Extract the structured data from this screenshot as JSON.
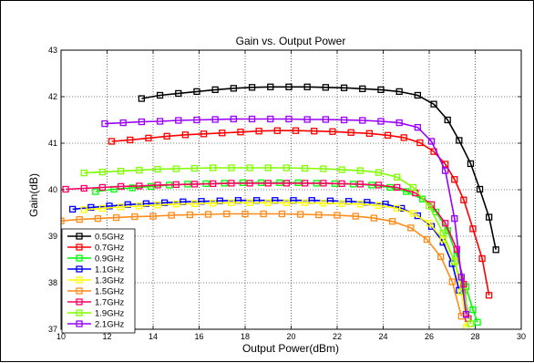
{
  "chart_data": {
    "type": "line",
    "title": "Gain vs. Output Power",
    "xlabel": "Output Power(dBm)",
    "ylabel": "Gain(dB)",
    "xlim": [
      10,
      30
    ],
    "ylim": [
      37,
      43
    ],
    "xticks": [
      "10",
      "12",
      "14",
      "16",
      "18",
      "20",
      "22",
      "24",
      "26",
      "28",
      "30"
    ],
    "yticks": [
      "37",
      "38",
      "39",
      "40",
      "41",
      "42",
      "43"
    ],
    "grid": true,
    "legend_position": "bottom-left",
    "marker": "square",
    "series": [
      {
        "name": "0.5GHz",
        "color": "#000000",
        "x": [
          13.5,
          14.3,
          15.1,
          15.9,
          16.7,
          17.5,
          18.3,
          19.1,
          19.9,
          20.7,
          21.5,
          22.3,
          23.1,
          23.9,
          24.7,
          25.5,
          26.2,
          26.8,
          27.3,
          27.8,
          28.2,
          28.6,
          28.9
        ],
        "y": [
          41.96,
          42.03,
          42.07,
          42.11,
          42.15,
          42.18,
          42.2,
          42.21,
          42.21,
          42.21,
          42.2,
          42.19,
          42.17,
          42.15,
          42.11,
          42.03,
          41.84,
          41.5,
          41.06,
          40.56,
          40.01,
          39.41,
          38.71
        ]
      },
      {
        "name": "0.7GHz",
        "color": "#ff0000",
        "x": [
          12.2,
          13.0,
          13.8,
          14.6,
          15.4,
          16.2,
          17.0,
          17.8,
          18.6,
          19.4,
          20.2,
          21.0,
          21.8,
          22.6,
          23.4,
          24.2,
          24.9,
          25.6,
          26.2,
          26.7,
          27.1,
          27.5,
          27.9,
          28.3,
          28.6
        ],
        "y": [
          41.04,
          41.07,
          41.11,
          41.15,
          41.18,
          41.2,
          41.22,
          41.24,
          41.26,
          41.27,
          41.27,
          41.26,
          41.25,
          41.23,
          41.21,
          41.17,
          41.12,
          41.01,
          40.82,
          40.55,
          40.22,
          39.78,
          39.16,
          38.52,
          37.73
        ]
      },
      {
        "name": "0.9GHz",
        "color": "#00ff00",
        "x": [
          11.5,
          12.3,
          13.1,
          13.9,
          14.7,
          15.5,
          16.3,
          17.1,
          17.9,
          18.7,
          19.5,
          20.3,
          21.1,
          21.9,
          22.7,
          23.5,
          24.3,
          25.0,
          25.7,
          26.3,
          26.8,
          27.2,
          27.6,
          27.9,
          28.1
        ],
        "y": [
          39.96,
          40.01,
          40.04,
          40.07,
          40.1,
          40.12,
          40.13,
          40.14,
          40.15,
          40.15,
          40.15,
          40.15,
          40.14,
          40.13,
          40.12,
          40.1,
          40.05,
          39.96,
          39.8,
          39.52,
          39.12,
          38.58,
          37.91,
          37.42,
          37.15
        ]
      },
      {
        "name": "1.1GHz",
        "color": "#0000ff",
        "x": [
          10.5,
          11.3,
          12.1,
          12.9,
          13.7,
          14.5,
          15.3,
          16.1,
          16.9,
          17.7,
          18.5,
          19.3,
          20.1,
          20.9,
          21.7,
          22.5,
          23.3,
          24.1,
          24.8,
          25.5,
          26.1,
          26.6,
          27.0,
          27.3
        ],
        "y": [
          39.58,
          39.62,
          39.65,
          39.68,
          39.7,
          39.72,
          39.74,
          39.75,
          39.76,
          39.77,
          39.77,
          39.77,
          39.77,
          39.77,
          39.76,
          39.75,
          39.73,
          39.69,
          39.6,
          39.44,
          39.21,
          38.87,
          38.41,
          37.84
        ]
      },
      {
        "name": "1.3GHz",
        "color": "#ffff00",
        "x": [
          11.0,
          11.8,
          12.6,
          13.4,
          14.2,
          15.0,
          15.8,
          16.6,
          17.4,
          18.2,
          19.0,
          19.8,
          20.6,
          21.4,
          22.2,
          23.0,
          23.8,
          24.6,
          25.3,
          26.0,
          26.6,
          27.1,
          27.4,
          27.6
        ],
        "y": [
          39.57,
          39.6,
          39.63,
          39.65,
          39.67,
          39.69,
          39.7,
          39.71,
          39.72,
          39.72,
          39.72,
          39.72,
          39.72,
          39.71,
          39.7,
          39.69,
          39.66,
          39.6,
          39.49,
          39.28,
          38.94,
          38.47,
          37.8,
          37.04
        ]
      },
      {
        "name": "1.5GHz",
        "color": "#ff8c1a",
        "x": [
          10.0,
          10.8,
          11.6,
          12.4,
          13.2,
          14.0,
          14.8,
          15.6,
          16.4,
          17.2,
          18.0,
          18.8,
          19.6,
          20.4,
          21.2,
          22.0,
          22.8,
          23.6,
          24.4,
          25.2,
          25.9,
          26.5,
          27.0,
          27.4
        ],
        "y": [
          39.33,
          39.36,
          39.38,
          39.4,
          39.42,
          39.43,
          39.45,
          39.46,
          39.47,
          39.48,
          39.48,
          39.48,
          39.48,
          39.47,
          39.46,
          39.45,
          39.43,
          39.39,
          39.32,
          39.18,
          38.93,
          38.56,
          38.02,
          37.28
        ]
      },
      {
        "name": "1.7GHz",
        "color": "#ff0066",
        "x": [
          10.2,
          11.0,
          11.8,
          12.6,
          13.4,
          14.2,
          15.0,
          15.8,
          16.6,
          17.4,
          18.2,
          19.0,
          19.8,
          20.6,
          21.4,
          22.2,
          23.0,
          23.8,
          24.6,
          25.4,
          26.1,
          26.7,
          27.2,
          27.5,
          27.7
        ],
        "y": [
          40.01,
          40.03,
          40.05,
          40.07,
          40.08,
          40.1,
          40.11,
          40.12,
          40.13,
          40.14,
          40.14,
          40.14,
          40.14,
          40.14,
          40.14,
          40.13,
          40.12,
          40.1,
          40.05,
          39.93,
          39.68,
          39.28,
          38.72,
          37.97,
          37.23
        ]
      },
      {
        "name": "1.9GHz",
        "color": "#80ff00",
        "x": [
          11.0,
          11.8,
          12.6,
          13.4,
          14.2,
          15.0,
          15.8,
          16.6,
          17.4,
          18.2,
          19.0,
          19.8,
          20.6,
          21.4,
          22.2,
          23.0,
          23.8,
          24.6,
          25.3,
          26.0,
          26.6,
          27.1,
          27.5,
          27.8
        ],
        "y": [
          40.36,
          40.38,
          40.4,
          40.42,
          40.44,
          40.45,
          40.46,
          40.47,
          40.47,
          40.47,
          40.47,
          40.47,
          40.46,
          40.45,
          40.43,
          40.41,
          40.37,
          40.27,
          40.05,
          39.65,
          39.07,
          38.45,
          37.82,
          37.12
        ]
      },
      {
        "name": "2.1GHz",
        "color": "#9900ff",
        "x": [
          11.9,
          12.7,
          13.5,
          14.3,
          15.1,
          15.9,
          16.7,
          17.5,
          18.3,
          19.1,
          19.9,
          20.7,
          21.5,
          22.3,
          23.1,
          23.9,
          24.7,
          25.5,
          26.1,
          26.7,
          27.1,
          27.4,
          27.6
        ],
        "y": [
          41.42,
          41.44,
          41.46,
          41.47,
          41.49,
          41.5,
          41.51,
          41.52,
          41.52,
          41.52,
          41.52,
          41.51,
          41.51,
          41.5,
          41.49,
          41.47,
          41.44,
          41.34,
          41.04,
          40.41,
          39.38,
          38.12,
          37.32
        ]
      }
    ]
  }
}
